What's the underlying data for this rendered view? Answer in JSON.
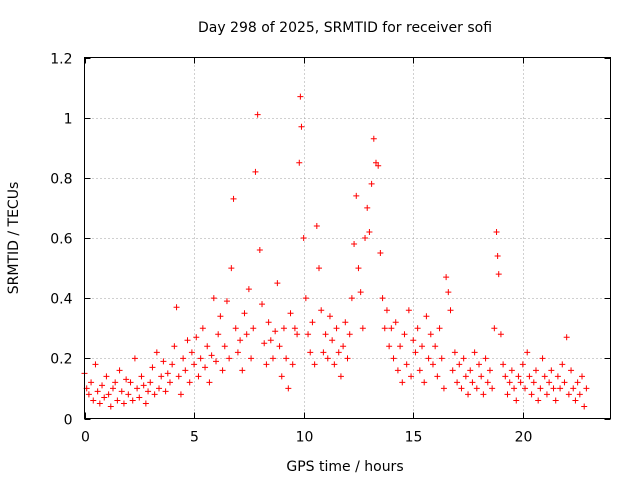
{
  "chart_data": {
    "type": "scatter",
    "title": "Day 298 of 2025, SRMTID for receiver sofi",
    "xlabel": "GPS time / hours",
    "ylabel": "SRMTID / TECUs",
    "xlim": [
      0,
      24
    ],
    "ylim": [
      0,
      1.2
    ],
    "xticks": [
      0,
      5,
      10,
      15,
      20
    ],
    "yticks": [
      0,
      0.2,
      0.4,
      0.6,
      0.8,
      1,
      1.2
    ],
    "xtick_labels": [
      "0",
      "5",
      "10",
      "15",
      "20"
    ],
    "ytick_labels": [
      "0",
      "0.2",
      "0.4",
      "0.6",
      "0.8",
      "1",
      "1.2"
    ],
    "grid": true,
    "marker": "+",
    "color": "#ff0000",
    "series": [
      {
        "name": "SRMTID",
        "points": [
          [
            0.0,
            0.15
          ],
          [
            0.1,
            0.1
          ],
          [
            0.2,
            0.08
          ],
          [
            0.3,
            0.12
          ],
          [
            0.4,
            0.06
          ],
          [
            0.5,
            0.18
          ],
          [
            0.6,
            0.09
          ],
          [
            0.7,
            0.05
          ],
          [
            0.8,
            0.11
          ],
          [
            0.9,
            0.07
          ],
          [
            1.0,
            0.14
          ],
          [
            1.1,
            0.08
          ],
          [
            1.2,
            0.04
          ],
          [
            1.3,
            0.1
          ],
          [
            1.4,
            0.12
          ],
          [
            1.5,
            0.06
          ],
          [
            1.6,
            0.16
          ],
          [
            1.7,
            0.09
          ],
          [
            1.8,
            0.05
          ],
          [
            1.9,
            0.13
          ],
          [
            2.0,
            0.08
          ],
          [
            2.1,
            0.12
          ],
          [
            2.2,
            0.06
          ],
          [
            2.3,
            0.2
          ],
          [
            2.4,
            0.1
          ],
          [
            2.5,
            0.07
          ],
          [
            2.6,
            0.14
          ],
          [
            2.7,
            0.11
          ],
          [
            2.8,
            0.05
          ],
          [
            2.9,
            0.09
          ],
          [
            3.0,
            0.12
          ],
          [
            3.1,
            0.17
          ],
          [
            3.2,
            0.08
          ],
          [
            3.3,
            0.22
          ],
          [
            3.4,
            0.1
          ],
          [
            3.5,
            0.14
          ],
          [
            3.6,
            0.19
          ],
          [
            3.7,
            0.09
          ],
          [
            3.8,
            0.15
          ],
          [
            3.9,
            0.12
          ],
          [
            4.0,
            0.18
          ],
          [
            4.1,
            0.24
          ],
          [
            4.2,
            0.37
          ],
          [
            4.3,
            0.14
          ],
          [
            4.4,
            0.08
          ],
          [
            4.5,
            0.2
          ],
          [
            4.6,
            0.16
          ],
          [
            4.7,
            0.26
          ],
          [
            4.8,
            0.12
          ],
          [
            4.9,
            0.22
          ],
          [
            5.0,
            0.18
          ],
          [
            5.1,
            0.27
          ],
          [
            5.2,
            0.14
          ],
          [
            5.3,
            0.2
          ],
          [
            5.4,
            0.3
          ],
          [
            5.5,
            0.17
          ],
          [
            5.6,
            0.24
          ],
          [
            5.7,
            0.12
          ],
          [
            5.8,
            0.21
          ],
          [
            5.9,
            0.4
          ],
          [
            6.0,
            0.19
          ],
          [
            6.1,
            0.28
          ],
          [
            6.2,
            0.34
          ],
          [
            6.3,
            0.16
          ],
          [
            6.4,
            0.24
          ],
          [
            6.5,
            0.39
          ],
          [
            6.6,
            0.2
          ],
          [
            6.7,
            0.5
          ],
          [
            6.8,
            0.73
          ],
          [
            6.9,
            0.3
          ],
          [
            7.0,
            0.22
          ],
          [
            7.1,
            0.26
          ],
          [
            7.2,
            0.16
          ],
          [
            7.3,
            0.35
          ],
          [
            7.4,
            0.28
          ],
          [
            7.5,
            0.43
          ],
          [
            7.6,
            0.2
          ],
          [
            7.7,
            0.3
          ],
          [
            7.8,
            0.82
          ],
          [
            7.9,
            1.01
          ],
          [
            8.0,
            0.56
          ],
          [
            8.1,
            0.38
          ],
          [
            8.2,
            0.25
          ],
          [
            8.3,
            0.18
          ],
          [
            8.4,
            0.32
          ],
          [
            8.5,
            0.26
          ],
          [
            8.6,
            0.2
          ],
          [
            8.7,
            0.29
          ],
          [
            8.8,
            0.45
          ],
          [
            8.9,
            0.24
          ],
          [
            9.0,
            0.14
          ],
          [
            9.1,
            0.3
          ],
          [
            9.2,
            0.2
          ],
          [
            9.3,
            0.1
          ],
          [
            9.4,
            0.35
          ],
          [
            9.5,
            0.18
          ],
          [
            9.6,
            0.3
          ],
          [
            9.7,
            0.28
          ],
          [
            9.8,
            0.85
          ],
          [
            9.85,
            1.07
          ],
          [
            9.9,
            0.97
          ],
          [
            10.0,
            0.6
          ],
          [
            10.1,
            0.4
          ],
          [
            10.2,
            0.28
          ],
          [
            10.3,
            0.22
          ],
          [
            10.4,
            0.32
          ],
          [
            10.5,
            0.18
          ],
          [
            10.6,
            0.64
          ],
          [
            10.7,
            0.5
          ],
          [
            10.8,
            0.36
          ],
          [
            10.9,
            0.22
          ],
          [
            11.0,
            0.28
          ],
          [
            11.1,
            0.2
          ],
          [
            11.2,
            0.34
          ],
          [
            11.3,
            0.26
          ],
          [
            11.4,
            0.18
          ],
          [
            11.5,
            0.3
          ],
          [
            11.6,
            0.22
          ],
          [
            11.7,
            0.14
          ],
          [
            11.8,
            0.24
          ],
          [
            11.9,
            0.32
          ],
          [
            12.0,
            0.2
          ],
          [
            12.1,
            0.28
          ],
          [
            12.2,
            0.4
          ],
          [
            12.3,
            0.58
          ],
          [
            12.4,
            0.74
          ],
          [
            12.5,
            0.5
          ],
          [
            12.6,
            0.42
          ],
          [
            12.7,
            0.3
          ],
          [
            12.8,
            0.6
          ],
          [
            12.9,
            0.7
          ],
          [
            13.0,
            0.62
          ],
          [
            13.1,
            0.78
          ],
          [
            13.2,
            0.93
          ],
          [
            13.3,
            0.85
          ],
          [
            13.4,
            0.84
          ],
          [
            13.5,
            0.55
          ],
          [
            13.6,
            0.4
          ],
          [
            13.7,
            0.3
          ],
          [
            13.8,
            0.36
          ],
          [
            13.9,
            0.24
          ],
          [
            14.0,
            0.3
          ],
          [
            14.1,
            0.2
          ],
          [
            14.2,
            0.32
          ],
          [
            14.3,
            0.16
          ],
          [
            14.4,
            0.24
          ],
          [
            14.5,
            0.12
          ],
          [
            14.6,
            0.28
          ],
          [
            14.7,
            0.18
          ],
          [
            14.8,
            0.36
          ],
          [
            14.9,
            0.14
          ],
          [
            15.0,
            0.26
          ],
          [
            15.1,
            0.22
          ],
          [
            15.2,
            0.3
          ],
          [
            15.3,
            0.16
          ],
          [
            15.4,
            0.24
          ],
          [
            15.5,
            0.12
          ],
          [
            15.6,
            0.34
          ],
          [
            15.7,
            0.2
          ],
          [
            15.8,
            0.28
          ],
          [
            15.9,
            0.18
          ],
          [
            16.0,
            0.24
          ],
          [
            16.1,
            0.14
          ],
          [
            16.2,
            0.3
          ],
          [
            16.3,
            0.2
          ],
          [
            16.4,
            0.1
          ],
          [
            16.5,
            0.47
          ],
          [
            16.6,
            0.42
          ],
          [
            16.7,
            0.36
          ],
          [
            16.8,
            0.16
          ],
          [
            16.9,
            0.22
          ],
          [
            17.0,
            0.12
          ],
          [
            17.1,
            0.18
          ],
          [
            17.2,
            0.1
          ],
          [
            17.3,
            0.2
          ],
          [
            17.4,
            0.14
          ],
          [
            17.5,
            0.08
          ],
          [
            17.6,
            0.16
          ],
          [
            17.7,
            0.12
          ],
          [
            17.8,
            0.22
          ],
          [
            17.9,
            0.1
          ],
          [
            18.0,
            0.18
          ],
          [
            18.1,
            0.14
          ],
          [
            18.2,
            0.08
          ],
          [
            18.3,
            0.2
          ],
          [
            18.4,
            0.12
          ],
          [
            18.5,
            0.16
          ],
          [
            18.6,
            0.1
          ],
          [
            18.7,
            0.3
          ],
          [
            18.8,
            0.62
          ],
          [
            18.85,
            0.54
          ],
          [
            18.9,
            0.48
          ],
          [
            19.0,
            0.28
          ],
          [
            19.1,
            0.18
          ],
          [
            19.2,
            0.14
          ],
          [
            19.3,
            0.08
          ],
          [
            19.4,
            0.12
          ],
          [
            19.5,
            0.16
          ],
          [
            19.6,
            0.1
          ],
          [
            19.7,
            0.06
          ],
          [
            19.8,
            0.14
          ],
          [
            19.9,
            0.12
          ],
          [
            20.0,
            0.18
          ],
          [
            20.1,
            0.1
          ],
          [
            20.2,
            0.22
          ],
          [
            20.3,
            0.14
          ],
          [
            20.4,
            0.08
          ],
          [
            20.5,
            0.12
          ],
          [
            20.6,
            0.16
          ],
          [
            20.7,
            0.06
          ],
          [
            20.8,
            0.1
          ],
          [
            20.9,
            0.2
          ],
          [
            21.0,
            0.14
          ],
          [
            21.1,
            0.08
          ],
          [
            21.2,
            0.12
          ],
          [
            21.3,
            0.16
          ],
          [
            21.4,
            0.1
          ],
          [
            21.5,
            0.06
          ],
          [
            21.6,
            0.14
          ],
          [
            21.7,
            0.1
          ],
          [
            21.8,
            0.18
          ],
          [
            21.9,
            0.12
          ],
          [
            22.0,
            0.27
          ],
          [
            22.1,
            0.08
          ],
          [
            22.2,
            0.16
          ],
          [
            22.3,
            0.1
          ],
          [
            22.4,
            0.06
          ],
          [
            22.5,
            0.12
          ],
          [
            22.6,
            0.08
          ],
          [
            22.7,
            0.14
          ],
          [
            22.8,
            0.04
          ],
          [
            22.9,
            0.1
          ]
        ]
      }
    ]
  }
}
